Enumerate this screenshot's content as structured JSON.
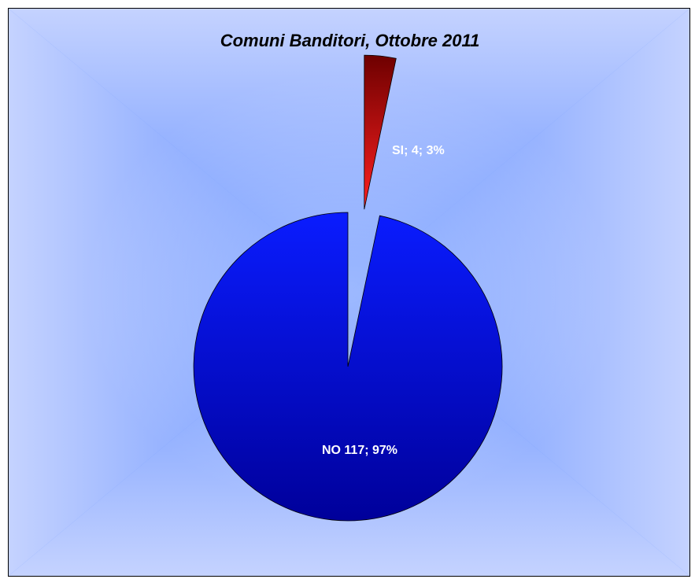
{
  "chart_data": {
    "type": "pie",
    "title": "Comuni Banditori, Ottobre 2011",
    "slices": [
      {
        "name": "SI",
        "value": 4,
        "percent": 3,
        "label": "SI; 4; 3%",
        "exploded": true
      },
      {
        "name": "NO",
        "value": 117,
        "percent": 97,
        "label": "NO 117; 97%",
        "exploded": false
      }
    ],
    "colors": {
      "SI": {
        "top": "#6e0000",
        "bottom": "#ff2020"
      },
      "NO": {
        "top": "#0a1cff",
        "bottom": "#00009a"
      },
      "background": "#4a7fff",
      "label": "#ffffff"
    },
    "legend": "none"
  }
}
